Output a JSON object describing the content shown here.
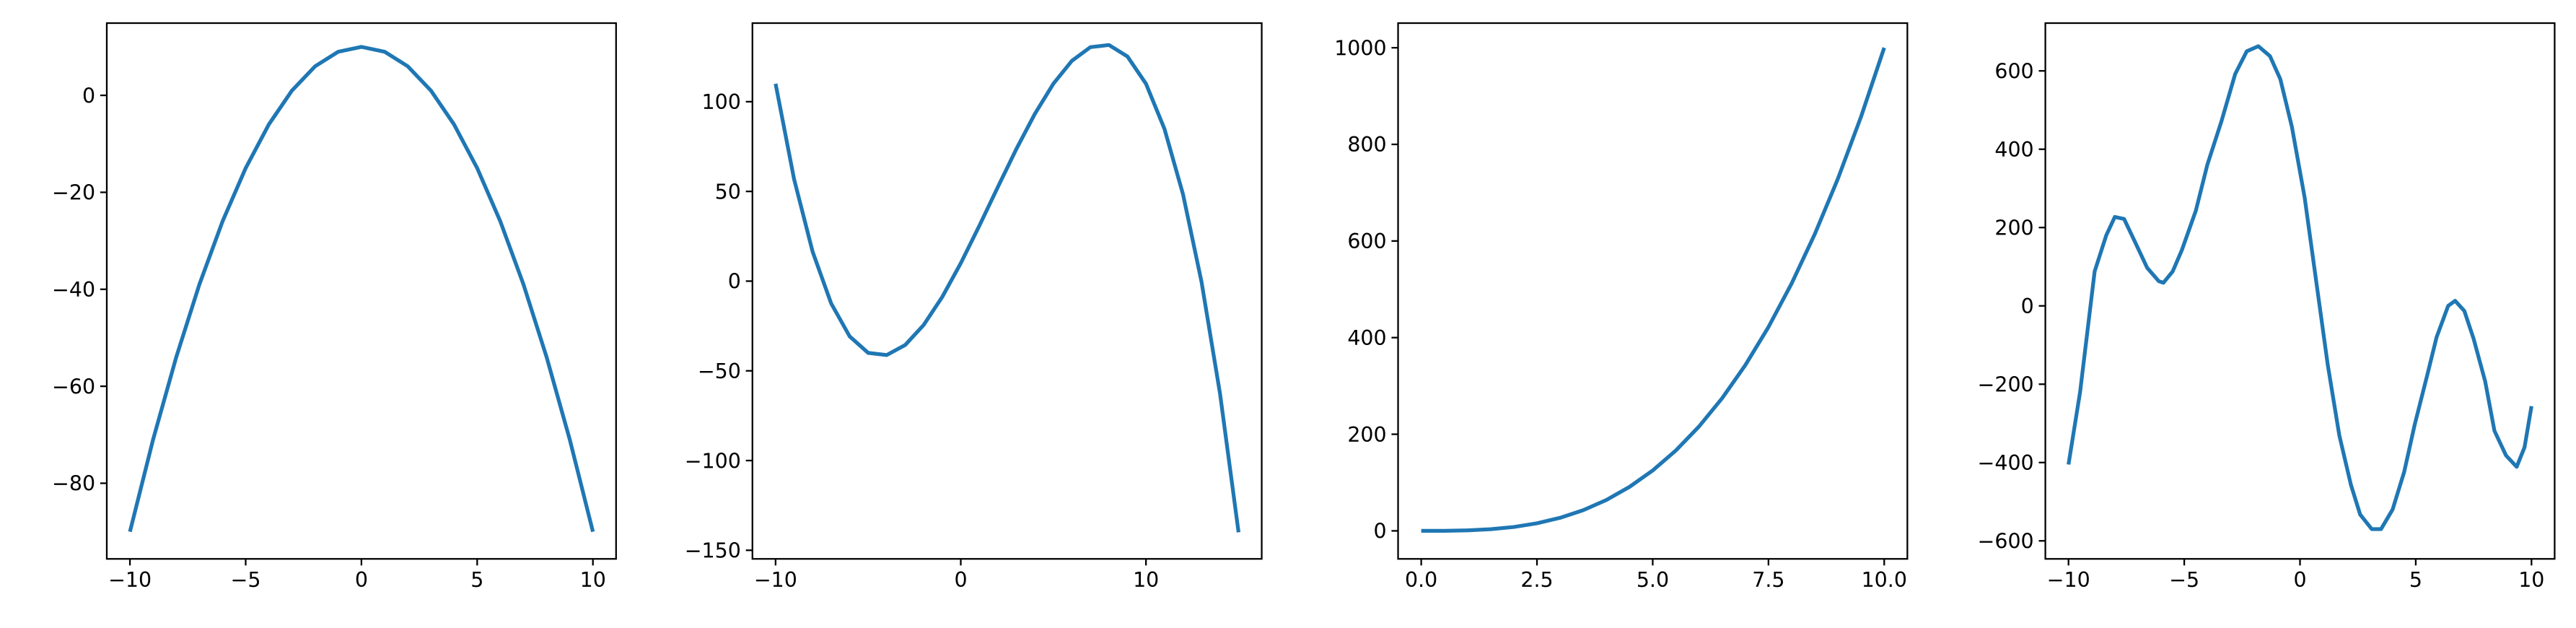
{
  "chart_data": [
    {
      "type": "line",
      "xlim": [
        -11,
        11
      ],
      "ylim": [
        -95.6,
        14.9
      ],
      "xticks": [
        {
          "value": -10,
          "label": "−10"
        },
        {
          "value": -5,
          "label": "−5"
        },
        0,
        5,
        10
      ],
      "yticks": [
        {
          "value": -80,
          "label": "−80"
        },
        {
          "value": -60,
          "label": "−60"
        },
        {
          "value": -40,
          "label": "−40"
        },
        {
          "value": -20,
          "label": "−20"
        },
        0
      ],
      "series": [
        {
          "color": "#1f77b4",
          "x": [
            -10,
            -9,
            -8,
            -7,
            -6,
            -5,
            -4,
            -3,
            -2,
            -1,
            0,
            1,
            2,
            3,
            4,
            5,
            6,
            7,
            8,
            9,
            10
          ],
          "values": [
            -90,
            -71,
            -54,
            -39,
            -26,
            -15,
            -6,
            1,
            6,
            9,
            10,
            9,
            6,
            1,
            -6,
            -15,
            -26,
            -39,
            -54,
            -71,
            -90
          ]
        }
      ]
    },
    {
      "type": "line",
      "xlim": [
        -11.25,
        16.25
      ],
      "ylim": [
        -154.8,
        143.8
      ],
      "xticks": [
        {
          "value": -10,
          "label": "−10"
        },
        0,
        10
      ],
      "yticks": [
        {
          "value": -150,
          "label": "−150"
        },
        {
          "value": -100,
          "label": "−100"
        },
        {
          "value": -50,
          "label": "−50"
        },
        0,
        50,
        100
      ],
      "series": [
        {
          "color": "#1f77b4",
          "x": [
            -10,
            -9,
            -8,
            -7,
            -6,
            -5,
            -4,
            -3,
            -2,
            -1,
            0,
            1,
            2,
            3,
            4,
            5,
            6,
            7,
            8,
            9,
            10,
            11,
            12,
            13,
            14,
            15
          ],
          "values": [
            110,
            56.8,
            16.4,
            -12.4,
            -30.8,
            -40,
            -41.2,
            -35.6,
            -24.4,
            -8.8,
            10,
            30.8,
            52.4,
            73.6,
            93.2,
            110,
            122.8,
            130.4,
            131.6,
            125.2,
            110,
            84.8,
            48.4,
            -0.4,
            -62.8,
            -140
          ]
        }
      ]
    },
    {
      "type": "line",
      "xlim": [
        -0.5,
        10.5
      ],
      "ylim": [
        -58,
        1051
      ],
      "xticks": [
        {
          "value": 0,
          "label": "0.0"
        },
        2.5,
        {
          "value": 5,
          "label": "5.0"
        },
        7.5,
        {
          "value": 10,
          "label": "10.0"
        }
      ],
      "yticks": [
        0,
        200,
        400,
        600,
        800,
        1000
      ],
      "series": [
        {
          "color": "#1f77b4",
          "x": [
            0,
            0.5,
            1,
            1.5,
            2,
            2.5,
            3,
            3.5,
            4,
            4.5,
            5,
            5.5,
            6,
            6.5,
            7,
            7.5,
            8,
            8.5,
            9,
            9.5,
            10
          ],
          "values": [
            0,
            0.125,
            1,
            3.375,
            8,
            15.625,
            27,
            42.875,
            64,
            91.125,
            125,
            166.375,
            216,
            274.625,
            343,
            421.875,
            512,
            614.125,
            729,
            857.375,
            1000
          ]
        }
      ]
    },
    {
      "type": "line",
      "xlim": [
        -11,
        11
      ],
      "ylim": [
        -646,
        722
      ],
      "xticks": [
        {
          "value": -10,
          "label": "−10"
        },
        {
          "value": -5,
          "label": "−5"
        },
        0,
        5,
        10
      ],
      "yticks": [
        {
          "value": -600,
          "label": "−600"
        },
        {
          "value": -400,
          "label": "−400"
        },
        {
          "value": -200,
          "label": "−200"
        },
        0,
        200,
        400,
        600
      ],
      "series": [
        {
          "color": "#1f77b4",
          "x": [
            -10,
            -9.5,
            -8.87,
            -8.37,
            -8.0,
            -7.6,
            -7.1,
            -6.6,
            -6.1,
            -5.9,
            -5.5,
            -5.1,
            -4.5,
            -4.0,
            -3.4,
            -2.8,
            -2.3,
            -1.8,
            -1.3,
            -0.85,
            -0.35,
            0.2,
            0.7,
            1.2,
            1.7,
            2.2,
            2.6,
            3.1,
            3.5,
            4.0,
            4.5,
            4.96,
            5.5,
            5.9,
            6.4,
            6.7,
            7.1,
            7.5,
            8.0,
            8.4,
            8.9,
            9.36,
            9.7,
            10
          ],
          "values": [
            -405,
            -220,
            88,
            180,
            227,
            222,
            160,
            97,
            63,
            59,
            88,
            143,
            243,
            361,
            470,
            592,
            650,
            663,
            638,
            579,
            457,
            277,
            63,
            -151,
            -331,
            -457,
            -533,
            -570,
            -570,
            -520,
            -424,
            -302,
            -176,
            -80,
            0,
            13,
            -13,
            -84,
            -193,
            -319,
            -382,
            -411,
            -361,
            -256
          ]
        }
      ]
    }
  ]
}
